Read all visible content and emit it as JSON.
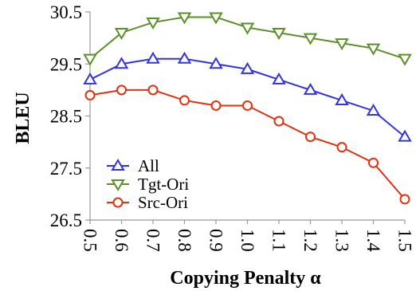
{
  "chart_data": {
    "type": "line",
    "xlabel": "Copying Penalty α",
    "ylabel": "BLEU",
    "x": [
      0.5,
      0.6,
      0.7,
      0.8,
      0.9,
      1.0,
      1.1,
      1.2,
      1.3,
      1.4,
      1.5
    ],
    "x_tick_labels": [
      "0.5",
      "0.6",
      "0.7",
      "0.8",
      "0.9",
      "1.0",
      "1.1",
      "1.2",
      "1.3",
      "1.4",
      "1.5"
    ],
    "y_ticks": [
      26.5,
      27.5,
      28.5,
      29.5,
      30.5
    ],
    "y_tick_labels": [
      "26.5",
      "27.5",
      "28.5",
      "29.5",
      "30.5"
    ],
    "ylim": [
      26.5,
      30.5
    ],
    "grid": "none",
    "legend_position": "lower-left",
    "series": [
      {
        "name": "All",
        "marker": "triangle-up",
        "color": "#3333dd",
        "values": [
          29.2,
          29.5,
          29.6,
          29.6,
          29.5,
          29.4,
          29.2,
          29.0,
          28.8,
          28.6,
          28.1
        ]
      },
      {
        "name": "Tgt-Ori",
        "marker": "triangle-down",
        "color": "#5a8f29",
        "values": [
          29.6,
          30.1,
          30.3,
          30.4,
          30.4,
          30.2,
          30.1,
          30.0,
          29.9,
          29.8,
          29.6
        ]
      },
      {
        "name": "Src-Ori",
        "marker": "circle",
        "color": "#dd3311",
        "values": [
          28.9,
          29.0,
          29.0,
          28.8,
          28.7,
          28.7,
          28.4,
          28.1,
          27.9,
          27.6,
          26.9
        ]
      }
    ]
  }
}
